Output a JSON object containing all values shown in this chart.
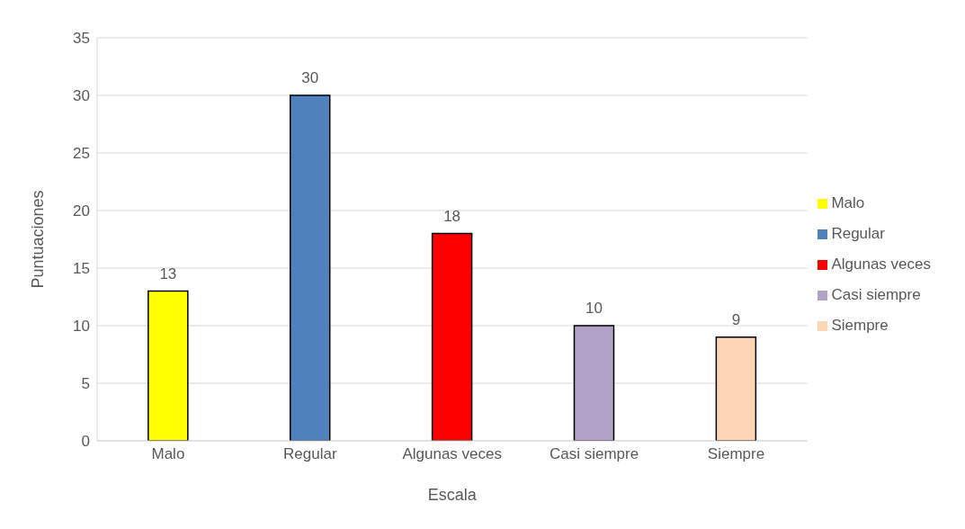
{
  "chart_data": {
    "type": "bar",
    "xlabel": "Escala",
    "ylabel": "Puntuaciones",
    "categories": [
      "Malo",
      "Regular",
      "Algunas veces",
      "Casi siempre",
      "Siempre"
    ],
    "series": [
      {
        "name": "Malo",
        "color": "#ffff00",
        "values": [
          13,
          null,
          null,
          null,
          null
        ]
      },
      {
        "name": "Regular",
        "color": "#4f81bd",
        "values": [
          null,
          30,
          null,
          null,
          null
        ]
      },
      {
        "name": "Algunas veces",
        "color": "#ff0000",
        "values": [
          null,
          null,
          18,
          null,
          null
        ]
      },
      {
        "name": "Casi siempre",
        "color": "#b3a2c7",
        "values": [
          null,
          null,
          null,
          10,
          null
        ]
      },
      {
        "name": "Siempre",
        "color": "#fcd5b5",
        "values": [
          null,
          null,
          null,
          null,
          9
        ]
      }
    ],
    "stacked": true,
    "ylim": [
      0,
      35
    ],
    "yticks": [
      0,
      5,
      10,
      15,
      20,
      25,
      30,
      35
    ],
    "grid": "y",
    "legend": "right",
    "data_labels": true
  }
}
